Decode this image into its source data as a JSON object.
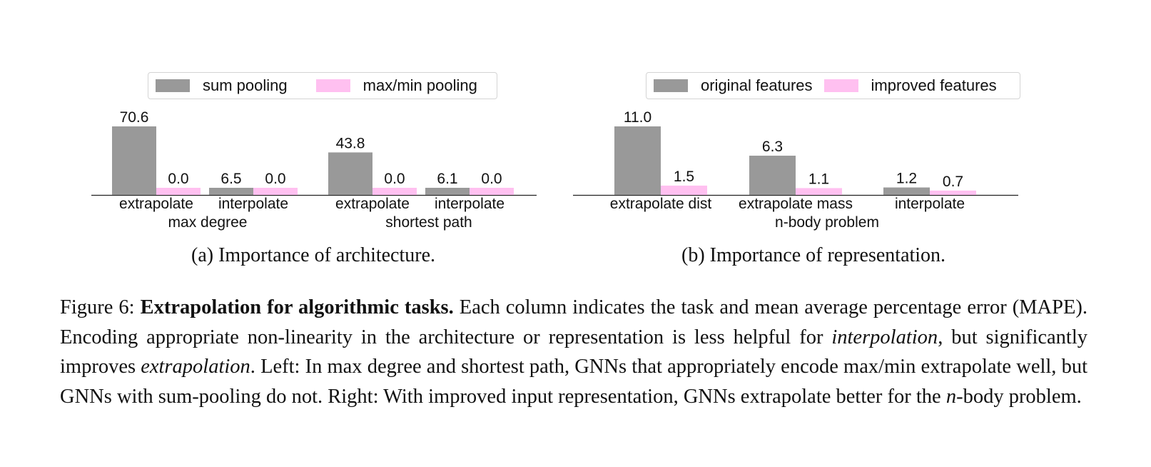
{
  "chart_data": [
    {
      "type": "bar",
      "caption": "(a) Importance of architecture.",
      "series": [
        {
          "name": "sum pooling",
          "values": [
            70.6,
            6.5,
            43.8,
            6.1
          ]
        },
        {
          "name": "max/min pooling",
          "values": [
            0.0,
            0.0,
            0.0,
            0.0
          ]
        }
      ],
      "categories": [
        "extrapolate",
        "interpolate",
        "extrapolate",
        "interpolate"
      ],
      "groups": [
        {
          "label": "max degree",
          "categories": [
            0,
            1
          ]
        },
        {
          "label": "shortest path",
          "categories": [
            2,
            3
          ]
        }
      ],
      "data_labels": [
        [
          "70.6",
          "6.5",
          "43.8",
          "6.1"
        ],
        [
          "0.0",
          "0.0",
          "0.0",
          "0.0"
        ]
      ],
      "legend": "top-center",
      "grid": false
    },
    {
      "type": "bar",
      "caption": "(b) Importance of representation.",
      "series": [
        {
          "name": "original features",
          "values": [
            11.0,
            6.3,
            1.2
          ]
        },
        {
          "name": "improved features",
          "values": [
            1.5,
            1.1,
            0.7
          ]
        }
      ],
      "categories": [
        "extrapolate dist",
        "extrapolate mass",
        "interpolate"
      ],
      "groups": [
        {
          "label": "n-body problem",
          "categories": [
            0,
            1,
            2
          ]
        }
      ],
      "data_labels": [
        [
          "11.0",
          "6.3",
          "1.2"
        ],
        [
          "1.5",
          "1.1",
          "0.7"
        ]
      ],
      "legend": "top-center",
      "grid": false
    }
  ],
  "colors": {
    "series1": "#999999",
    "series2": "#ffc0f0"
  },
  "figure_caption": {
    "label": "Figure 6: ",
    "bold": "Extrapolation for algorithmic tasks.",
    "text1": " Each column indicates the task and mean average percentage error (MAPE). Encoding appropriate non-linearity in the architecture or representation is less helpful for ",
    "italic1": "interpolation",
    "text2": ", but significantly improves ",
    "italic2": "extrapolation",
    "text3": ". Left: In max degree and shortest path, GNNs that appropriately encode max/min extrapolate well, but GNNs with sum-pooling do not. Right: With improved input representation, GNNs extrapolate better for the ",
    "italic3": "n",
    "text4": "-body problem."
  }
}
